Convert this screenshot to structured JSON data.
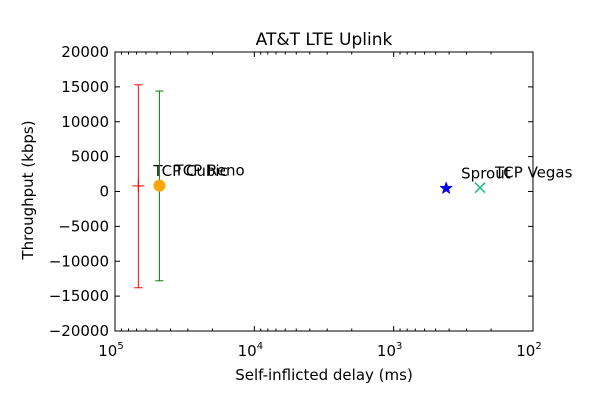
{
  "chart_data": {
    "type": "scatter",
    "title": "AT&T LTE Uplink",
    "xlabel": "Self-inflicted delay (ms)",
    "ylabel": "Throughput (kbps)",
    "xscale": "log",
    "x_reversed": true,
    "xlim": [
      100000,
      100
    ],
    "ylim": [
      -20000,
      20000
    ],
    "grid": false,
    "x_ticks": [
      {
        "base": "10",
        "exp": "5",
        "value": 100000
      },
      {
        "base": "10",
        "exp": "4",
        "value": 10000
      },
      {
        "base": "10",
        "exp": "3",
        "value": 1000
      },
      {
        "base": "10",
        "exp": "2",
        "value": 100
      }
    ],
    "y_ticks": [
      {
        "label": "20000",
        "value": 20000
      },
      {
        "label": "15000",
        "value": 15000
      },
      {
        "label": "10000",
        "value": 10000
      },
      {
        "label": "5000",
        "value": 5000
      },
      {
        "label": "0",
        "value": 0
      },
      {
        "label": "−5000",
        "value": -5000
      },
      {
        "label": "−10000",
        "value": -10000
      },
      {
        "label": "−15000",
        "value": -15000
      },
      {
        "label": "−20000",
        "value": -20000
      }
    ],
    "series": [
      {
        "name": "TCP Cubic",
        "x": 68000,
        "y": 800,
        "y_err_low": -13800,
        "y_err_high": 15300,
        "marker": "plus",
        "color": "#ff0000"
      },
      {
        "name": "TCP Reno",
        "x": 48000,
        "y": 850,
        "y_err_low": -12800,
        "y_err_high": 14400,
        "marker": "circle",
        "color": "#ffa500",
        "error_color": "#008000"
      },
      {
        "name": "Sprout",
        "x": 420,
        "y": 450,
        "marker": "star",
        "color": "#0000ff"
      },
      {
        "name": "TCP Vegas",
        "x": 240,
        "y": 550,
        "marker": "x",
        "color": "#1fb88a"
      }
    ]
  }
}
